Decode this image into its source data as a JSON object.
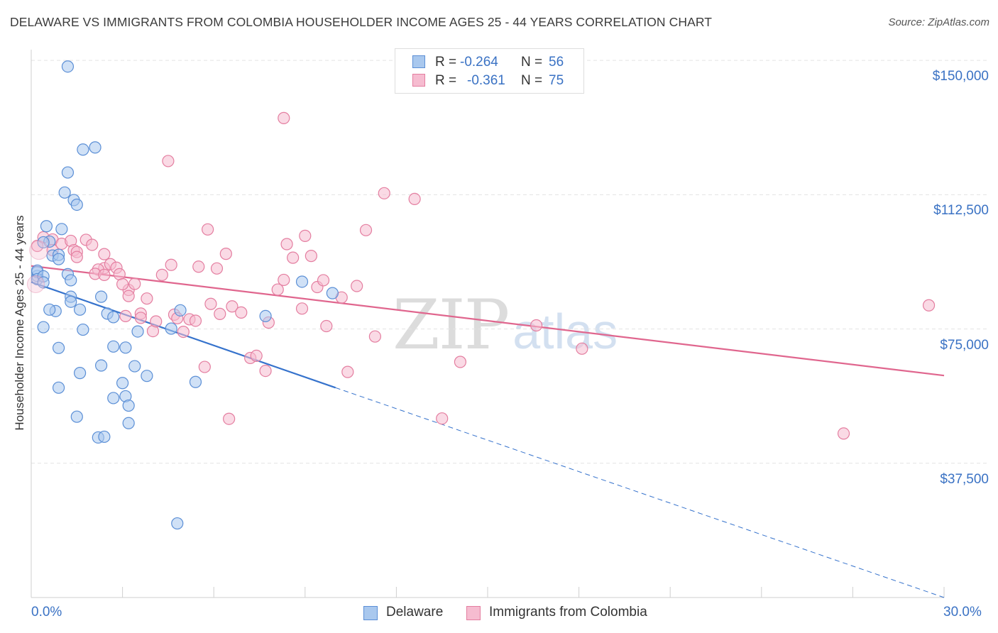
{
  "title": "DELAWARE VS IMMIGRANTS FROM COLOMBIA HOUSEHOLDER INCOME AGES 25 - 44 YEARS CORRELATION CHART",
  "source": "Source: ZipAtlas.com",
  "watermark": {
    "zip": "ZIP",
    "atlas": "atlas"
  },
  "legend": {
    "rows": [
      {
        "r_label": "R =",
        "r_value": "-0.264",
        "n_label": "N =",
        "n_value": "56"
      },
      {
        "r_label": "R =",
        "r_value": "-0.361",
        "n_label": "N =",
        "n_value": "75"
      }
    ]
  },
  "bottom_legend": [
    {
      "label": "Delaware"
    },
    {
      "label": "Immigrants from Colombia"
    }
  ],
  "colors": {
    "delaware_fill": "#a9c8ee",
    "delaware_stroke": "#5b8fd6",
    "delaware_line": "#3572cc",
    "colombia_fill": "#f6bcd0",
    "colombia_stroke": "#e47ea0",
    "colombia_line": "#e0668e",
    "tick_label": "#3a72c4",
    "grid": "#e3e3e3"
  },
  "chart_data": {
    "type": "scatter",
    "title": "DELAWARE VS IMMIGRANTS FROM COLOMBIA HOUSEHOLDER INCOME AGES 25 - 44 YEARS CORRELATION CHART",
    "xlabel": "",
    "ylabel": "Householder Income Ages 25 - 44 years",
    "xlim": [
      0,
      30
    ],
    "ylim": [
      0,
      153000
    ],
    "x_tick_labels": [
      {
        "value": 0,
        "label": "0.0%"
      },
      {
        "value": 30,
        "label": "30.0%"
      }
    ],
    "y_tick_labels": [
      {
        "value": 37500,
        "label": "$37,500"
      },
      {
        "value": 75000,
        "label": "$75,000"
      },
      {
        "value": 112500,
        "label": "$112,500"
      },
      {
        "value": 150000,
        "label": "$150,000"
      }
    ],
    "series": [
      {
        "name": "Delaware",
        "R": -0.264,
        "N": 56,
        "trend": {
          "x0": 0,
          "y0": 88100,
          "x1": 10,
          "y1": 58600,
          "dash_to_x": 30,
          "dash_to_y": 0
        },
        "points": [
          [
            1.2,
            148300
          ],
          [
            0.2,
            89800
          ],
          [
            0.2,
            90900
          ],
          [
            0.2,
            91300
          ],
          [
            0.2,
            88900
          ],
          [
            0.4,
            89700
          ],
          [
            0.4,
            88000
          ],
          [
            0.4,
            75500
          ],
          [
            0.5,
            103700
          ],
          [
            0.6,
            99400
          ],
          [
            0.4,
            99200
          ],
          [
            0.7,
            95500
          ],
          [
            0.9,
            95700
          ],
          [
            0.9,
            94500
          ],
          [
            1.1,
            113100
          ],
          [
            1.2,
            118700
          ],
          [
            1.4,
            111000
          ],
          [
            1.5,
            109700
          ],
          [
            1.7,
            125100
          ],
          [
            2.1,
            125700
          ],
          [
            1.0,
            102900
          ],
          [
            1.2,
            90300
          ],
          [
            1.3,
            88600
          ],
          [
            1.3,
            84000
          ],
          [
            1.3,
            82600
          ],
          [
            0.8,
            80000
          ],
          [
            0.6,
            80400
          ],
          [
            1.6,
            80400
          ],
          [
            1.7,
            74800
          ],
          [
            2.3,
            84000
          ],
          [
            2.5,
            79300
          ],
          [
            2.7,
            78300
          ],
          [
            2.7,
            70100
          ],
          [
            3.1,
            69800
          ],
          [
            3.5,
            74300
          ],
          [
            4.6,
            75100
          ],
          [
            4.9,
            80200
          ],
          [
            3.4,
            64600
          ],
          [
            2.3,
            64800
          ],
          [
            1.6,
            62700
          ],
          [
            0.9,
            58600
          ],
          [
            3.0,
            59900
          ],
          [
            3.8,
            61900
          ],
          [
            3.1,
            56200
          ],
          [
            3.2,
            53600
          ],
          [
            2.7,
            55700
          ],
          [
            3.2,
            48700
          ],
          [
            1.5,
            50500
          ],
          [
            2.2,
            44700
          ],
          [
            2.4,
            44900
          ],
          [
            0.9,
            69700
          ],
          [
            5.4,
            60200
          ],
          [
            7.7,
            78600
          ],
          [
            8.9,
            88200
          ],
          [
            9.9,
            85000
          ],
          [
            4.8,
            20700
          ]
        ]
      },
      {
        "name": "Immigrants from Colombia",
        "R": -0.361,
        "N": 75,
        "trend": {
          "x0": 0,
          "y0": 92600,
          "x1": 30,
          "y1": 62000
        },
        "points": [
          [
            0.2,
            98200
          ],
          [
            0.4,
            100600
          ],
          [
            0.7,
            100000
          ],
          [
            0.7,
            97000
          ],
          [
            1.0,
            98800
          ],
          [
            1.3,
            99600
          ],
          [
            1.4,
            97000
          ],
          [
            1.5,
            96500
          ],
          [
            1.5,
            95100
          ],
          [
            1.8,
            99900
          ],
          [
            2.0,
            98500
          ],
          [
            2.4,
            95900
          ],
          [
            2.4,
            92000
          ],
          [
            2.6,
            93100
          ],
          [
            2.2,
            91600
          ],
          [
            2.1,
            90400
          ],
          [
            2.4,
            90100
          ],
          [
            2.8,
            92100
          ],
          [
            2.9,
            90300
          ],
          [
            3.2,
            85900
          ],
          [
            3.2,
            84200
          ],
          [
            3.4,
            87600
          ],
          [
            3.0,
            87500
          ],
          [
            3.1,
            78600
          ],
          [
            3.6,
            79300
          ],
          [
            3.6,
            78100
          ],
          [
            3.8,
            83500
          ],
          [
            4.0,
            74400
          ],
          [
            4.1,
            77100
          ],
          [
            4.3,
            90100
          ],
          [
            4.5,
            121900
          ],
          [
            4.6,
            92900
          ],
          [
            4.7,
            79000
          ],
          [
            4.8,
            78000
          ],
          [
            5.0,
            74200
          ],
          [
            5.2,
            77700
          ],
          [
            5.4,
            77300
          ],
          [
            5.5,
            92400
          ],
          [
            5.7,
            64400
          ],
          [
            5.8,
            102800
          ],
          [
            5.9,
            82000
          ],
          [
            6.1,
            91900
          ],
          [
            6.2,
            79200
          ],
          [
            6.4,
            96000
          ],
          [
            6.6,
            81300
          ],
          [
            6.9,
            79600
          ],
          [
            7.2,
            66900
          ],
          [
            7.4,
            67500
          ],
          [
            7.7,
            63300
          ],
          [
            7.8,
            76800
          ],
          [
            8.1,
            86000
          ],
          [
            8.3,
            88700
          ],
          [
            8.4,
            98700
          ],
          [
            8.6,
            94900
          ],
          [
            8.9,
            80700
          ],
          [
            9.0,
            101000
          ],
          [
            9.2,
            95400
          ],
          [
            9.4,
            86700
          ],
          [
            9.6,
            88600
          ],
          [
            9.7,
            75800
          ],
          [
            10.2,
            83800
          ],
          [
            10.7,
            87000
          ],
          [
            11.0,
            102600
          ],
          [
            11.3,
            72900
          ],
          [
            11.6,
            112900
          ],
          [
            12.6,
            111300
          ],
          [
            10.4,
            63000
          ],
          [
            13.5,
            50000
          ],
          [
            14.1,
            65800
          ],
          [
            16.6,
            76000
          ],
          [
            18.1,
            69500
          ],
          [
            29.5,
            81600
          ],
          [
            26.7,
            45800
          ],
          [
            8.3,
            133900
          ],
          [
            6.5,
            49900
          ]
        ]
      }
    ]
  }
}
